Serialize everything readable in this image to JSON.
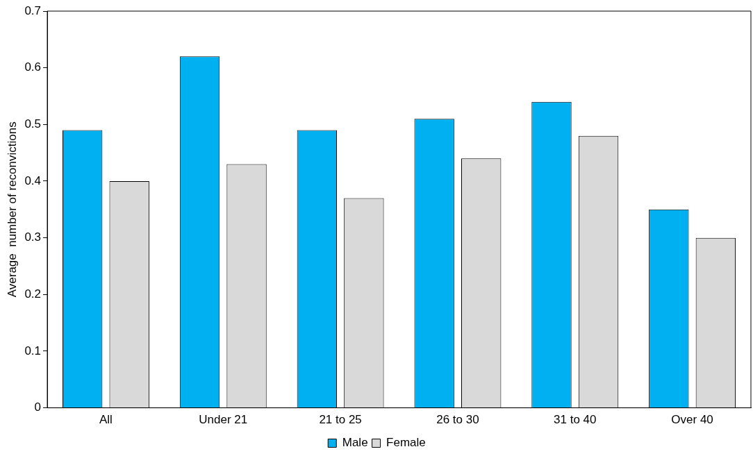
{
  "chart_data": {
    "type": "bar",
    "ylabel": "Average  number of reconvictions",
    "categories": [
      "All",
      "Under 21",
      "21 to 25",
      "26 to 30",
      "31 to 40",
      "Over 40"
    ],
    "series": [
      {
        "name": "Male",
        "color": "#00b0f0",
        "values": [
          0.49,
          0.62,
          0.49,
          0.51,
          0.54,
          0.35
        ]
      },
      {
        "name": "Female",
        "color": "#d9d9d9",
        "values": [
          0.4,
          0.43,
          0.37,
          0.44,
          0.48,
          0.3
        ]
      }
    ],
    "ylim": [
      0,
      0.7
    ],
    "yticks": [
      0,
      0.1,
      0.2,
      0.3,
      0.4,
      0.5,
      0.6,
      0.7
    ],
    "grid": false,
    "legend": "bottom"
  }
}
